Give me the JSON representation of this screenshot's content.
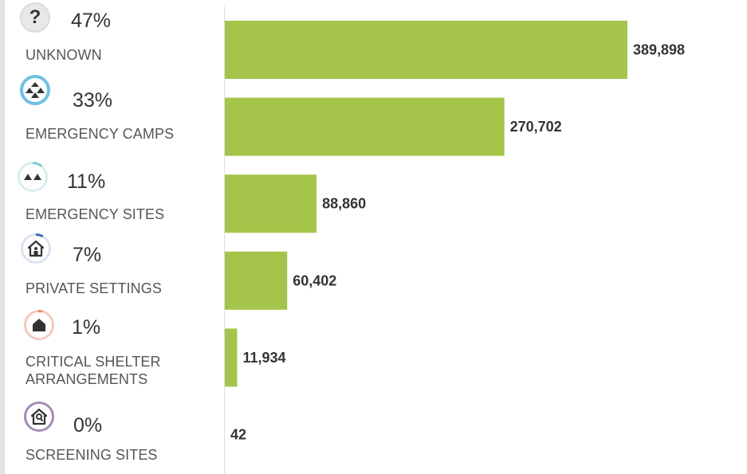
{
  "chart_data": {
    "type": "bar",
    "orientation": "horizontal",
    "categories": [
      "UNKNOWN",
      "EMERGENCY CAMPS",
      "EMERGENCY SITES",
      "PRIVATE SETTINGS",
      "CRITICAL SHELTER ARRANGEMENTS",
      "SCREENING SITES"
    ],
    "values": [
      389898,
      270702,
      88860,
      60402,
      11934,
      42
    ],
    "value_labels": [
      "389,898",
      "270,702",
      "88,860",
      "60,402",
      "11,934",
      "42"
    ],
    "percentages": [
      "47%",
      "33%",
      "11%",
      "7%",
      "1%",
      "0%"
    ],
    "xlim": [
      0,
      389898
    ],
    "grid": false,
    "bar_color": "#a4c44a"
  },
  "legend": [
    {
      "label": "UNKNOWN",
      "percent": "47%",
      "icon": "question-icon",
      "ring_color": "#d9d9d9"
    },
    {
      "label": "EMERGENCY CAMPS",
      "percent": "33%",
      "icon": "camps-icon",
      "ring_color": "#6ec1e4"
    },
    {
      "label": "EMERGENCY SITES",
      "percent": "11%",
      "icon": "tents-icon",
      "ring_color": "#7fd0d6"
    },
    {
      "label": "PRIVATE SETTINGS",
      "percent": "7%",
      "icon": "house-person-icon",
      "ring_color": "#3d6fb0"
    },
    {
      "label": "CRITICAL SHELTER ARRANGEMENTS",
      "label_line1": "CRITICAL SHELTER",
      "label_line2": "ARRANGEMENTS",
      "percent": "1%",
      "icon": "shelter-icon",
      "ring_color": "#ee8e78"
    },
    {
      "label": "SCREENING SITES",
      "percent": "0%",
      "icon": "house-search-icon",
      "ring_color": "#a48bb5"
    }
  ]
}
